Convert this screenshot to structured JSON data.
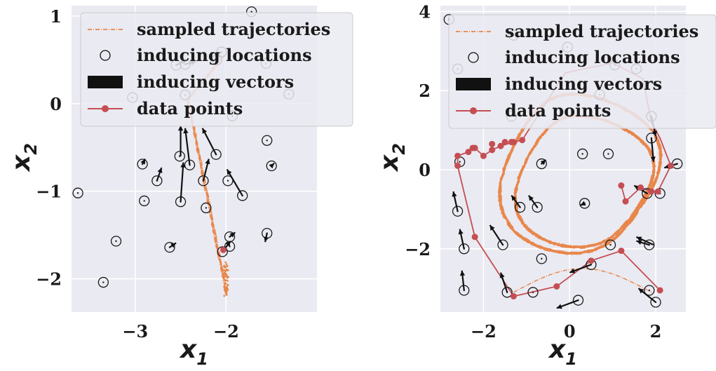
{
  "chart_data": [
    {
      "type": "scatter",
      "xlabel": "x",
      "xlabel_sub": "1",
      "ylabel": "x",
      "ylabel_sub": "2",
      "xlim": [
        -3.7,
        -1.0
      ],
      "ylim": [
        -2.38,
        1.12
      ],
      "xticks": [
        -3,
        -2
      ],
      "xtick_labels": [
        "−3",
        "−2"
      ],
      "yticks": [
        -2,
        -1,
        0,
        1
      ],
      "ytick_labels": [
        "−2",
        "−1",
        "0",
        "1"
      ],
      "grid": true,
      "legend_position": "top-right",
      "legend": [
        "sampled trajectories",
        "inducing locations",
        "inducing vectors",
        "data points"
      ],
      "colors": {
        "background": "#eaeaf2",
        "grid": "#ffffff",
        "trajectory": "#e8864a",
        "data": "#c44e52",
        "marker": "#1a1a1a"
      },
      "data_points": [
        [
          -2.03,
          -1.67
        ]
      ],
      "inducing_locations": [
        [
          -3.63,
          -1.02
        ],
        [
          -3.35,
          -2.04
        ],
        [
          -3.21,
          -1.57
        ],
        [
          -3.03,
          0.07
        ],
        [
          -2.92,
          -0.69
        ],
        [
          -2.9,
          -1.11
        ],
        [
          -2.76,
          -0.88
        ],
        [
          -2.62,
          -1.64
        ],
        [
          -2.55,
          0.44
        ],
        [
          -2.51,
          -0.6
        ],
        [
          -2.5,
          -1.12
        ],
        [
          -2.45,
          0.1
        ],
        [
          -2.4,
          -0.7
        ],
        [
          -2.25,
          -0.88
        ],
        [
          -2.22,
          -1.19
        ],
        [
          -2.11,
          -0.58
        ],
        [
          -2.1,
          0.5
        ],
        [
          -2.04,
          -1.69
        ],
        [
          -1.98,
          -0.88
        ],
        [
          -1.96,
          -1.52
        ],
        [
          -1.96,
          -1.63
        ],
        [
          -1.93,
          -0.14
        ],
        [
          -1.82,
          -1.05
        ],
        [
          -1.72,
          1.05
        ],
        [
          -1.56,
          0.46
        ],
        [
          -1.55,
          -0.42
        ],
        [
          -1.55,
          -1.48
        ],
        [
          -1.5,
          -0.71
        ],
        [
          -1.31,
          0.11
        ],
        [
          -2.45,
          0.45
        ],
        [
          -2.05,
          0.59
        ]
      ],
      "inducing_vectors": [
        [
          -2.5,
          -0.6,
          0.0,
          0.35
        ],
        [
          -2.5,
          -1.12,
          0.03,
          0.45
        ],
        [
          -2.4,
          -0.7,
          -0.05,
          0.42
        ],
        [
          -2.11,
          -0.58,
          -0.15,
          0.3
        ],
        [
          -1.82,
          -1.05,
          -0.17,
          0.3
        ],
        [
          -2.25,
          -0.88,
          0.06,
          0.25
        ],
        [
          -2.04,
          -1.69,
          0.09,
          0.12
        ],
        [
          -1.96,
          -1.52,
          0.06,
          0.05
        ],
        [
          -1.55,
          -1.48,
          -0.02,
          -0.1
        ],
        [
          -2.92,
          -0.69,
          0.03,
          0.06
        ],
        [
          -2.76,
          -0.88,
          0.05,
          0.15
        ],
        [
          -2.62,
          -1.64,
          0.07,
          0.05
        ],
        [
          -1.5,
          -0.71,
          0.03,
          0.03
        ],
        [
          -2.55,
          0.44,
          0.12,
          0.06
        ],
        [
          -2.45,
          0.45,
          0.12,
          0.03
        ],
        [
          -2.05,
          0.59,
          -0.08,
          -0.04
        ]
      ]
    },
    {
      "type": "scatter",
      "xlabel": "x",
      "xlabel_sub": "1",
      "ylabel": "x",
      "ylabel_sub": "2",
      "xlim": [
        -3.0,
        2.7
      ],
      "ylim": [
        -3.6,
        4.15
      ],
      "xticks": [
        -2,
        0,
        2
      ],
      "xtick_labels": [
        "−2",
        "0",
        "2"
      ],
      "yticks": [
        -2,
        0,
        2,
        4
      ],
      "ytick_labels": [
        "−2",
        "0",
        "2",
        "4"
      ],
      "grid": true,
      "legend_position": "top-right",
      "legend": [
        "sampled trajectories",
        "inducing locations",
        "inducing vectors",
        "data points"
      ],
      "colors": {
        "background": "#eaeaf2",
        "grid": "#ffffff",
        "trajectory": "#e8864a",
        "data": "#c44e52",
        "marker": "#1a1a1a"
      },
      "data_points": [
        [
          -1.3,
          -3.2
        ],
        [
          -0.3,
          -2.95
        ],
        [
          0.5,
          -2.3
        ],
        [
          1.2,
          -2.05
        ],
        [
          2.1,
          -3.05
        ],
        [
          -2.2,
          -1.7
        ],
        [
          -2.6,
          0.1
        ],
        [
          -2.6,
          0.35
        ],
        [
          -2.35,
          0.45
        ],
        [
          -2.25,
          0.55
        ],
        [
          -2.2,
          0.55
        ],
        [
          -2.0,
          0.35
        ],
        [
          -1.8,
          0.5
        ],
        [
          -1.6,
          0.6
        ],
        [
          -1.5,
          0.7
        ],
        [
          -1.35,
          0.7
        ],
        [
          -1.3,
          0.7
        ],
        [
          1.2,
          -0.4
        ],
        [
          1.3,
          -0.8
        ],
        [
          1.65,
          -0.45
        ],
        [
          1.9,
          -0.55
        ],
        [
          2.05,
          -0.55
        ],
        [
          2.35,
          0.1
        ],
        [
          -1.8,
          0.65
        ],
        [
          -1.1,
          0.75
        ]
      ],
      "data_path": [
        [
          -1.3,
          -3.2
        ],
        [
          -0.3,
          -2.95
        ],
        [
          0.5,
          -2.3
        ],
        [
          1.2,
          -2.05
        ],
        [
          2.1,
          -3.05
        ]
      ],
      "data_path_2": [
        [
          -1.3,
          -3.2
        ],
        [
          -2.2,
          -1.7
        ],
        [
          -2.6,
          0.1
        ],
        [
          -2.6,
          0.35
        ],
        [
          -2.35,
          0.45
        ],
        [
          -2.2,
          0.55
        ],
        [
          -2.0,
          0.35
        ],
        [
          -1.8,
          0.5
        ],
        [
          -1.6,
          0.6
        ],
        [
          -1.3,
          0.7
        ],
        [
          -1.1,
          0.75
        ],
        [
          -0.1,
          2.45
        ],
        [
          1.0,
          2.7
        ],
        [
          1.7,
          2.3
        ],
        [
          1.9,
          1.2
        ],
        [
          2.1,
          0.8
        ],
        [
          2.35,
          0.1
        ],
        [
          2.05,
          -0.55
        ],
        [
          1.9,
          -0.55
        ],
        [
          1.65,
          -0.45
        ],
        [
          1.3,
          -0.8
        ],
        [
          1.2,
          -0.4
        ]
      ],
      "inducing_locations": [
        [
          -2.8,
          3.8
        ],
        [
          -2.6,
          2.55
        ],
        [
          -2.55,
          0.2
        ],
        [
          -2.6,
          -1.05
        ],
        [
          -2.45,
          -2.0
        ],
        [
          -2.45,
          -3.05
        ],
        [
          -1.55,
          -1.9
        ],
        [
          -1.45,
          -3.1
        ],
        [
          -1.15,
          -0.95
        ],
        [
          -1.35,
          1.35
        ],
        [
          -0.85,
          -3.1
        ],
        [
          -0.75,
          -0.95
        ],
        [
          -0.65,
          0.15
        ],
        [
          -0.65,
          -2.25
        ],
        [
          -0.05,
          3.1
        ],
        [
          0.2,
          -3.3
        ],
        [
          0.3,
          0.4
        ],
        [
          0.35,
          -0.85
        ],
        [
          0.5,
          -2.4
        ],
        [
          0.9,
          0.4
        ],
        [
          0.95,
          -1.9
        ],
        [
          1.05,
          2.65
        ],
        [
          1.55,
          2.55
        ],
        [
          1.8,
          -0.6
        ],
        [
          1.85,
          -1.9
        ],
        [
          1.9,
          1.35
        ],
        [
          1.9,
          0.8
        ],
        [
          2.0,
          -3.35
        ],
        [
          2.1,
          -0.6
        ],
        [
          2.5,
          0.15
        ],
        [
          -1.3,
          3.4
        ],
        [
          0.7,
          1.9
        ],
        [
          1.85,
          -3.05
        ]
      ],
      "inducing_vectors": [
        [
          -2.6,
          -1.05,
          -0.1,
          0.5
        ],
        [
          -2.45,
          -2.0,
          -0.1,
          0.5
        ],
        [
          -2.45,
          -3.05,
          -0.05,
          0.5
        ],
        [
          -1.55,
          -1.9,
          -0.3,
          0.5
        ],
        [
          -1.45,
          -3.1,
          -0.15,
          0.5
        ],
        [
          -0.75,
          -0.95,
          -0.2,
          0.3
        ],
        [
          -1.15,
          -0.95,
          -0.2,
          0.3
        ],
        [
          0.2,
          -3.3,
          -0.5,
          -0.2
        ],
        [
          0.5,
          -2.4,
          -0.5,
          -0.2
        ],
        [
          1.95,
          -1.9,
          -0.4,
          0.2
        ],
        [
          1.85,
          -1.9,
          -0.3,
          0.1
        ],
        [
          2.0,
          -3.35,
          -0.4,
          0.35
        ],
        [
          1.9,
          1.35,
          0.1,
          -0.5
        ],
        [
          1.9,
          0.8,
          0.05,
          -0.6
        ],
        [
          2.5,
          0.15,
          -0.3,
          -0.1
        ],
        [
          1.8,
          -0.6,
          -0.3,
          0.2
        ],
        [
          -0.65,
          0.15,
          0.1,
          0.1
        ],
        [
          0.35,
          -0.85,
          -0.1,
          -0.05
        ]
      ]
    }
  ]
}
